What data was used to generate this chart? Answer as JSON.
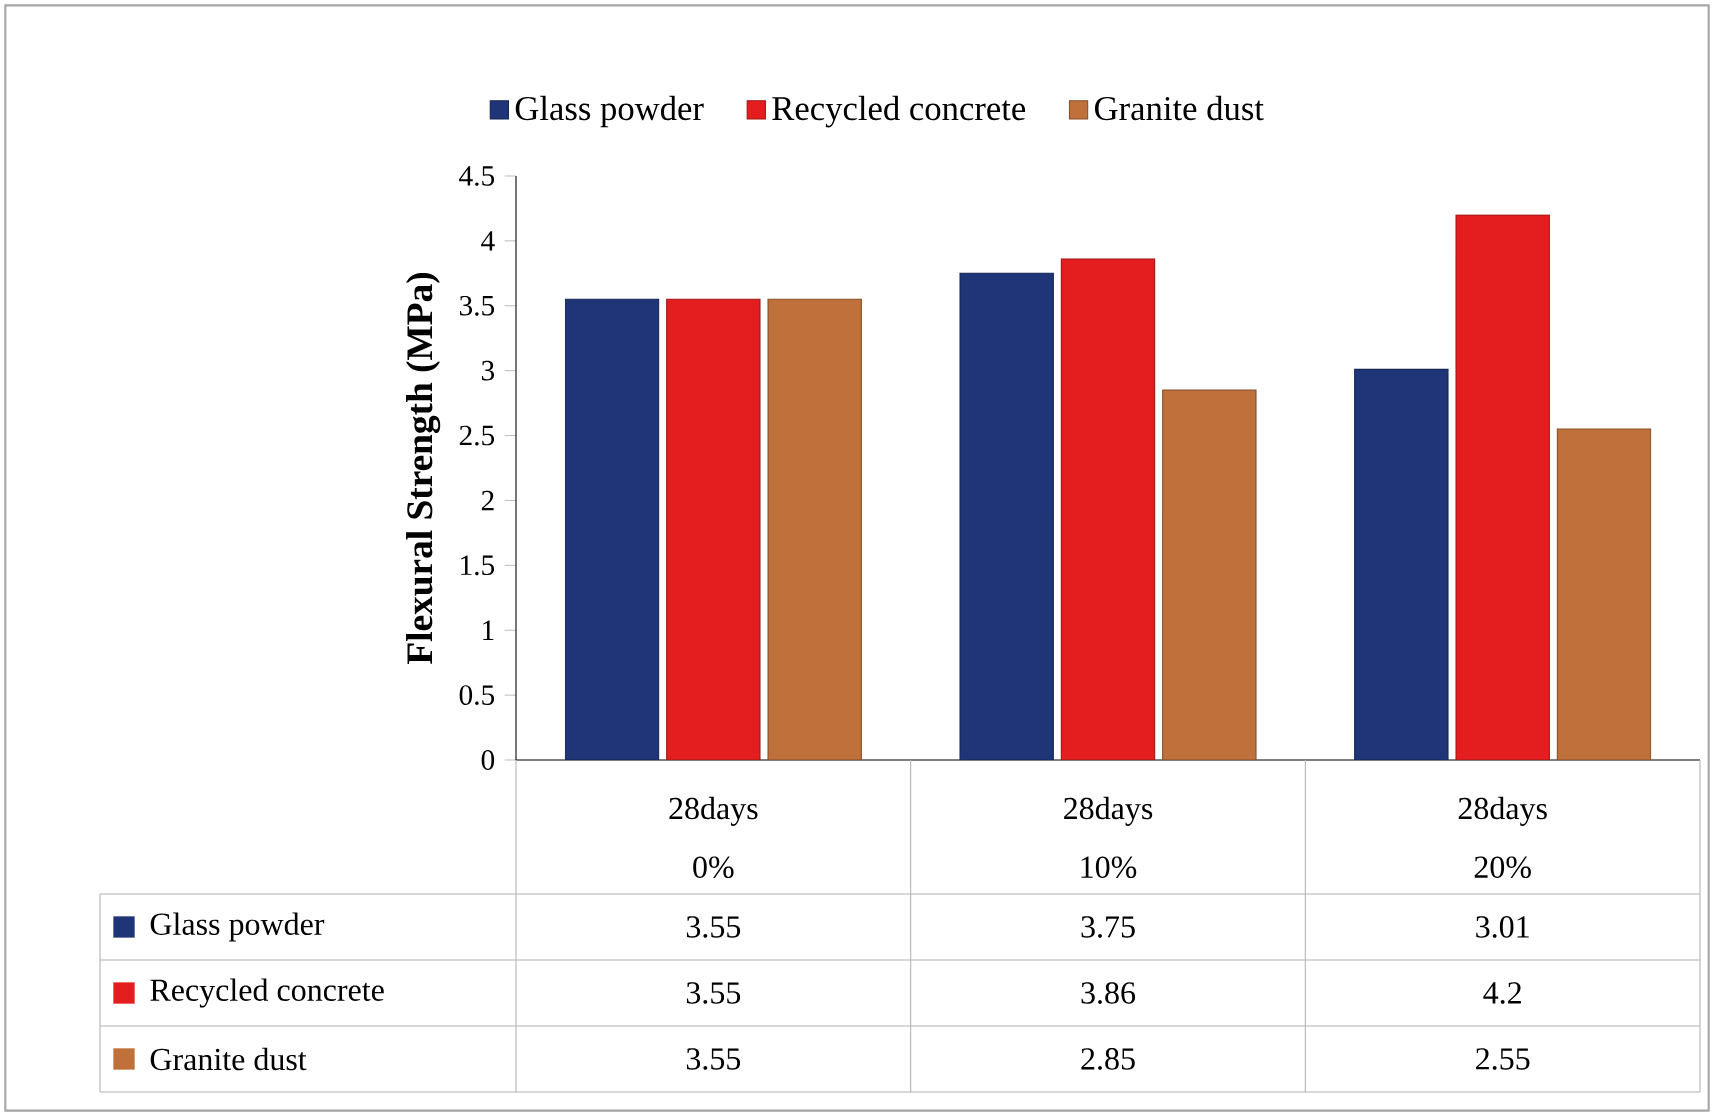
{
  "chart_data": {
    "type": "bar",
    "ylabel": "Flexural Strength (MPa)",
    "categories": [
      "28days 0%",
      "28days 10%",
      "28days 20%"
    ],
    "series": [
      {
        "name": "Glass powder",
        "color": "#1f3577",
        "values": [
          3.55,
          3.75,
          3.01
        ]
      },
      {
        "name": "Recycled concrete",
        "color": "#e41e1e",
        "values": [
          3.55,
          3.86,
          4.2
        ]
      },
      {
        "name": "Granite dust",
        "color": "#c0703a",
        "values": [
          3.55,
          2.85,
          2.55
        ]
      }
    ],
    "ylim": [
      0,
      4.5
    ],
    "yticks": [
      0,
      0.5,
      1,
      1.5,
      2,
      2.5,
      3,
      3.5,
      4,
      4.5
    ],
    "legend": "top",
    "data_labels": true
  }
}
